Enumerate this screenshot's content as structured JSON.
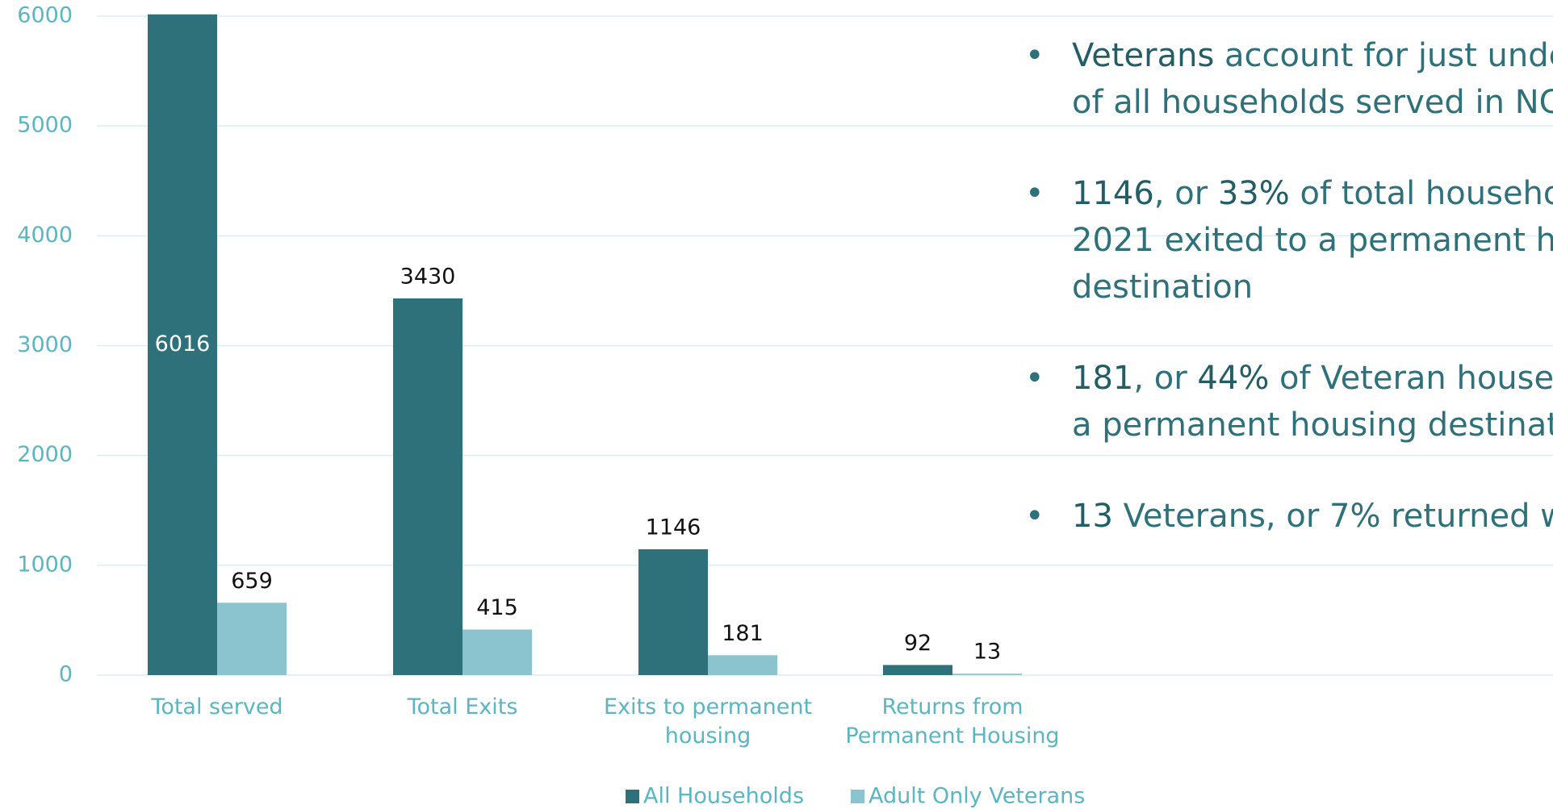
{
  "chart_data": {
    "type": "bar",
    "categories": [
      "Total served",
      "Total Exits",
      "Exits to permanent housing",
      "Returns from Permanent Housing"
    ],
    "series": [
      {
        "name": "All Households",
        "color": "#2e717a",
        "values": [
          6016,
          3430,
          1146,
          92
        ]
      },
      {
        "name": "Adult Only Veterans",
        "color": "#8bc3cf",
        "values": [
          659,
          415,
          181,
          13
        ]
      }
    ],
    "ylim": [
      0,
      6000
    ],
    "yticks": [
      0,
      1000,
      2000,
      3000,
      4000,
      5000,
      6000
    ],
    "grid": true,
    "legend": "bottom"
  },
  "bullets": [
    [
      [
        {
          "t": "Veterans",
          "em": true
        },
        {
          "t": " account for just unde"
        }
      ],
      [
        {
          "t": "of all households served in NC"
        }
      ]
    ],
    [
      [
        {
          "t": "1146",
          "em": true
        },
        {
          "t": ", or "
        },
        {
          "t": "33%",
          "em": true
        },
        {
          "t": " of total househo"
        }
      ],
      [
        {
          "t": "2021 exited to a permanent h"
        }
      ],
      [
        {
          "t": "destination"
        }
      ]
    ],
    [
      [
        {
          "t": "181",
          "em": true
        },
        {
          "t": ", or "
        },
        {
          "t": "44%",
          "em": true
        },
        {
          "t": " of Veteran house"
        }
      ],
      [
        {
          "t": "a permanent housing destinat"
        }
      ]
    ],
    [
      [
        {
          "t": "13",
          "em": true
        },
        {
          "t": " Veterans, or 7% returned w"
        }
      ]
    ]
  ]
}
